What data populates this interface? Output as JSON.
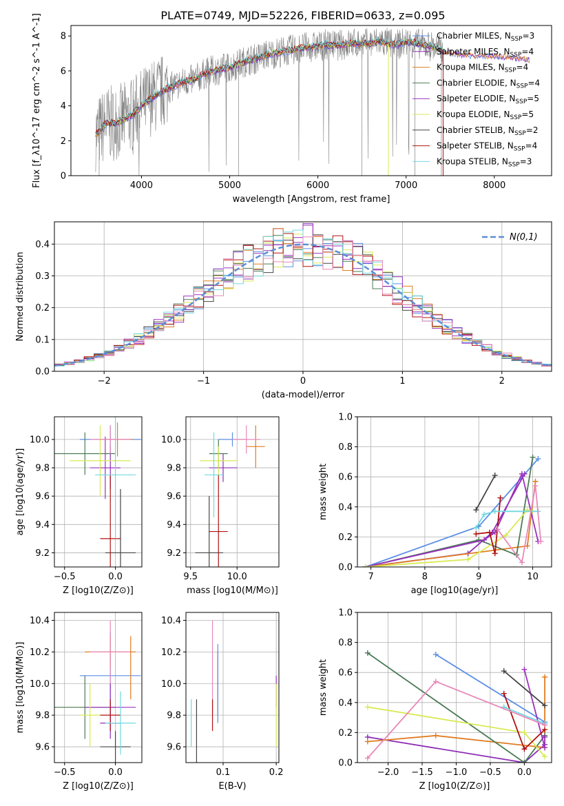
{
  "figure_title": "PLATE=0749, MJD=52226, FIBERID=0633, z=0.095",
  "colors": {
    "Chabrier MILES": "#5b8ee6",
    "Salpeter MILES": "#8c2db5",
    "Kroupa MILES": "#e07b20",
    "Chabrier ELODIE": "#4a7a55",
    "Salpeter ELODIE": "#9b30c0",
    "Kroupa ELODIE": "#d8ea52",
    "Chabrier STELIB": "#444444",
    "Salpeter STELIB": "#b01010",
    "Kroupa STELIB": "#70d8e0",
    "extra_pink": "#e888b8",
    "data": "#808080",
    "normal": "#5b8ed6"
  },
  "chart_data": [
    {
      "id": "spectrum",
      "type": "line",
      "title": "PLATE=0749, MJD=52226, FIBERID=0633, z=0.095",
      "xlabel": "wavelength [Angstrom, rest frame]",
      "ylabel": "Flux [f_λ10^-17 erg cm^-2 s^-1 A^-1]",
      "xlim": [
        3200,
        8650
      ],
      "ylim": [
        0,
        8.6
      ],
      "xticks": [
        4000,
        5000,
        6000,
        7000,
        8000
      ],
      "yticks": [
        0,
        2,
        4,
        6,
        8
      ],
      "legend_position": "top-right",
      "legend": [
        {
          "label": "Chabrier MILES, N",
          "sub": "SSP",
          "suffix": "=3"
        },
        {
          "label": "Salpeter MILES, N",
          "sub": "SSP",
          "suffix": "=4"
        },
        {
          "label": "Kroupa MILES, N",
          "sub": "SSP",
          "suffix": "=4"
        },
        {
          "label": "Chabrier ELODIE, N",
          "sub": "SSP",
          "suffix": "=4"
        },
        {
          "label": "Salpeter ELODIE, N",
          "sub": "SSP",
          "suffix": "=5"
        },
        {
          "label": "Kroupa ELODIE, N",
          "sub": "SSP",
          "suffix": "=5"
        },
        {
          "label": "Chabrier STELIB, N",
          "sub": "SSP",
          "suffix": "=2"
        },
        {
          "label": "Salpeter STELIB, N",
          "sub": "SSP",
          "suffix": "=4"
        },
        {
          "label": "Kroupa STELIB, N",
          "sub": "SSP",
          "suffix": "=3"
        }
      ],
      "model_curve": {
        "x": [
          3500,
          3600,
          3700,
          3800,
          3900,
          4000,
          4100,
          4200,
          4300,
          4400,
          4500,
          4600,
          4700,
          4800,
          4900,
          5000,
          5100,
          5200,
          5300,
          5400,
          5500,
          5600,
          5700,
          5800,
          5900,
          6000,
          6100,
          6200,
          6300,
          6400,
          6500,
          6600,
          6700,
          6800,
          6900,
          7000,
          7100,
          7200,
          7300,
          7400
        ],
        "y": [
          2.4,
          3.0,
          3.0,
          3.2,
          3.5,
          4.0,
          4.4,
          4.7,
          5.0,
          5.2,
          5.4,
          5.5,
          5.8,
          6.0,
          6.1,
          6.2,
          6.4,
          6.6,
          6.7,
          6.9,
          7.0,
          7.1,
          7.2,
          7.3,
          7.35,
          7.4,
          7.5,
          7.45,
          7.5,
          7.6,
          7.55,
          7.6,
          7.7,
          7.6,
          7.5,
          7.65,
          7.6,
          7.5,
          7.4,
          7.2
        ],
        "late_x": [
          7400,
          7600,
          7800,
          8000,
          8200,
          8400
        ],
        "late_y": [
          7.1,
          7.0,
          6.9,
          6.9,
          6.8,
          6.7
        ]
      }
    },
    {
      "id": "residuals",
      "type": "histogram",
      "xlabel": "(data-model)/error",
      "ylabel": "Normed distribution",
      "xlim": [
        -2.5,
        2.5
      ],
      "ylim": [
        0,
        0.47
      ],
      "xticks": [
        -2,
        -1,
        0,
        1,
        2
      ],
      "yticks": [
        0.0,
        0.1,
        0.2,
        0.3,
        0.4
      ],
      "bin_width": 0.1,
      "legend_position": "top-right",
      "legend_label": "N(0,1)",
      "grid": true
    },
    {
      "id": "age_vs_Z",
      "type": "errorbar",
      "xlabel": "Z [log10(Z/Z⊙)]",
      "ylabel": "age  [log10(age/yr)]",
      "xlim": [
        -0.6,
        0.26
      ],
      "ylim": [
        9.1,
        10.16
      ],
      "xticks": [
        -0.5,
        0.0
      ],
      "yticks": [
        9.2,
        9.4,
        9.6,
        9.8,
        10.0
      ],
      "points": [
        {
          "series": "Chabrier MILES",
          "x": -0.05,
          "xerr": 0.3,
          "y": 10.0,
          "yerr": 0.1
        },
        {
          "series": "Salpeter MILES",
          "x": -0.05,
          "xerr": 0.1,
          "y": 9.8,
          "yerr": 0.15
        },
        {
          "series": "Kroupa MILES",
          "x": 0.02,
          "xerr": 0.15,
          "y": 10.0,
          "yerr": 0.12
        },
        {
          "series": "Chabrier ELODIE",
          "x": -0.3,
          "xerr": 0.3,
          "y": 9.9,
          "yerr": 0.15
        },
        {
          "series": "Salpeter ELODIE",
          "x": -0.1,
          "xerr": 0.15,
          "y": 9.8,
          "yerr": 0.22
        },
        {
          "series": "Kroupa ELODIE",
          "x": -0.15,
          "xerr": 0.3,
          "y": 9.85,
          "yerr": 0.25
        },
        {
          "series": "Chabrier STELIB",
          "x": 0.05,
          "xerr": 0.15,
          "y": 9.2,
          "yerr": 0.45
        },
        {
          "series": "Salpeter STELIB",
          "x": -0.05,
          "xerr": 0.1,
          "y": 9.3,
          "yerr": 0.45
        },
        {
          "series": "Kroupa STELIB",
          "x": 0.0,
          "xerr": 0.2,
          "y": 9.75,
          "yerr": 0.45
        },
        {
          "series": "extra_pink",
          "x": -0.05,
          "xerr": 0.2,
          "y": 10.0,
          "yerr": 0.1
        }
      ]
    },
    {
      "id": "age_vs_mass",
      "type": "errorbar",
      "xlabel": "mass [log10(M/M⊙)]",
      "ylabel": "",
      "xlim": [
        9.45,
        10.45
      ],
      "ylim": [
        9.1,
        10.16
      ],
      "xticks": [
        9.5,
        10.0
      ],
      "yticks": [
        9.2,
        9.4,
        9.6,
        9.8,
        10.0
      ],
      "points": [
        {
          "series": "Chabrier MILES",
          "x": 9.95,
          "xerr": 0.15,
          "y": 10.0,
          "yerr": 0.05
        },
        {
          "series": "Salpeter MILES",
          "x": 9.85,
          "xerr": 0.15,
          "y": 9.8,
          "yerr": 0.1
        },
        {
          "series": "Kroupa MILES",
          "x": 10.2,
          "xerr": 0.1,
          "y": 9.95,
          "yerr": 0.15
        },
        {
          "series": "Chabrier ELODIE",
          "x": 9.8,
          "xerr": 0.1,
          "y": 9.9,
          "yerr": 0.1
        },
        {
          "series": "Kroupa ELODIE",
          "x": 9.8,
          "xerr": 0.2,
          "y": 9.85,
          "yerr": 0.1
        },
        {
          "series": "Chabrier STELIB",
          "x": 9.7,
          "xerr": 0.15,
          "y": 9.2,
          "yerr": 0.4
        },
        {
          "series": "Salpeter STELIB",
          "x": 9.8,
          "xerr": 0.1,
          "y": 9.35,
          "yerr": 0.4
        },
        {
          "series": "Kroupa STELIB",
          "x": 9.75,
          "xerr": 0.1,
          "y": 9.75,
          "yerr": 0.3
        },
        {
          "series": "extra_pink",
          "x": 10.1,
          "xerr": 0.15,
          "y": 10.0,
          "yerr": 0.1
        }
      ]
    },
    {
      "id": "massweight_vs_age",
      "type": "line",
      "xlabel": "age  [log10(age/yr)]",
      "ylabel": "mass weight",
      "xlim": [
        6.75,
        10.35
      ],
      "ylim": [
        0,
        1.0
      ],
      "xticks": [
        7,
        8,
        9,
        10
      ],
      "yticks": [
        0.0,
        0.2,
        0.4,
        0.6,
        0.8,
        1.0
      ],
      "grid": true,
      "series": [
        {
          "name": "Chabrier MILES",
          "x": [
            6.9,
            9.0,
            10.1
          ],
          "y": [
            0.0,
            0.27,
            0.72
          ]
        },
        {
          "name": "Salpeter MILES",
          "x": [
            6.9,
            8.8,
            9.25,
            9.85
          ],
          "y": [
            0.0,
            0.09,
            0.23,
            0.62
          ]
        },
        {
          "name": "Kroupa MILES",
          "x": [
            6.9,
            9.9,
            10.05
          ],
          "y": [
            0.0,
            0.14,
            0.57
          ]
        },
        {
          "name": "Chabrier ELODIE",
          "x": [
            6.9,
            9.0,
            9.7,
            10.0
          ],
          "y": [
            0.0,
            0.18,
            0.08,
            0.73
          ]
        },
        {
          "name": "Salpeter ELODIE",
          "x": [
            6.9,
            9.1,
            9.3,
            9.8,
            10.1
          ],
          "y": [
            0.0,
            0.18,
            0.23,
            0.62,
            0.17
          ]
        },
        {
          "name": "Kroupa ELODIE",
          "x": [
            6.9,
            8.8,
            9.5,
            9.9,
            10.0
          ],
          "y": [
            0.0,
            0.05,
            0.21,
            0.38,
            0.37
          ]
        },
        {
          "name": "Chabrier STELIB",
          "x": [
            8.95,
            9.3
          ],
          "y": [
            0.38,
            0.61
          ]
        },
        {
          "name": "Salpeter STELIB",
          "x": [
            8.95,
            9.2,
            9.3,
            9.4
          ],
          "y": [
            0.22,
            0.23,
            0.09,
            0.46
          ]
        },
        {
          "name": "Kroupa STELIB",
          "x": [
            8.95,
            9.1,
            9.3,
            10.1
          ],
          "y": [
            0.26,
            0.35,
            0.37,
            0.37
          ]
        },
        {
          "name": "extra_pink",
          "x": [
            9.35,
            9.8,
            10.05,
            10.15
          ],
          "y": [
            0.25,
            0.03,
            0.54,
            0.17
          ]
        }
      ]
    },
    {
      "id": "mass_vs_Z",
      "type": "errorbar",
      "xlabel": "Z [log10(Z/Z⊙)]",
      "ylabel": "mass [log10(M/M⊙)]",
      "xlim": [
        -0.6,
        0.26
      ],
      "ylim": [
        9.5,
        10.45
      ],
      "xticks": [
        -0.5,
        0.0
      ],
      "yticks": [
        9.6,
        9.8,
        10.0,
        10.2,
        10.4
      ],
      "points": [
        {
          "series": "Chabrier MILES",
          "x": -0.05,
          "xerr": 0.3,
          "y": 10.05,
          "yerr": 0.28
        },
        {
          "series": "Salpeter MILES",
          "x": -0.05,
          "xerr": 0.1,
          "y": 9.75,
          "yerr": 0.1
        },
        {
          "series": "Kroupa MILES",
          "x": -0.05,
          "xerr": 0.25,
          "y": 10.2,
          "yerr": 0.1
        },
        {
          "series": "Chabrier ELODIE",
          "x": -0.3,
          "xerr": 0.3,
          "y": 9.85,
          "yerr": 0.2
        },
        {
          "series": "Salpeter ELODIE",
          "x": -0.05,
          "xerr": 0.25,
          "y": 9.85,
          "yerr": 0.15
        },
        {
          "series": "Kroupa ELODIE",
          "x": -0.25,
          "xerr": 0.1,
          "y": 9.8,
          "yerr": 0.2
        },
        {
          "series": "Chabrier STELIB",
          "x": 0.0,
          "xerr": 0.15,
          "y": 9.6,
          "yerr": 0.1
        },
        {
          "series": "Salpeter STELIB",
          "x": -0.05,
          "xerr": 0.1,
          "y": 9.8,
          "yerr": 0.1
        },
        {
          "series": "Kroupa STELIB",
          "x": 0.05,
          "xerr": 0.15,
          "y": 9.75,
          "yerr": 0.2
        },
        {
          "series": "extra_pink",
          "x": -0.05,
          "xerr": 0.2,
          "y": 10.2,
          "yerr": 0.2
        },
        {
          "series": "Kroupa MILES",
          "x": 0.15,
          "xerr": 0.0,
          "y": 10.1,
          "yerr": 0.2
        }
      ]
    },
    {
      "id": "mass_vs_EBV",
      "type": "errorbar",
      "xlabel": "E(B-V)",
      "ylabel": "",
      "xlim": [
        0.03,
        0.205
      ],
      "ylim": [
        9.5,
        10.45
      ],
      "xticks": [
        0.1,
        0.2
      ],
      "yticks": [
        9.6,
        9.8,
        10.0,
        10.2,
        10.4
      ],
      "points": [
        {
          "series": "Kroupa STELIB",
          "x": 0.04,
          "yerr": 0.15,
          "y": 9.75
        },
        {
          "series": "Chabrier STELIB",
          "x": 0.05,
          "yerr": 0.2,
          "y": 9.7
        },
        {
          "series": "extra_pink",
          "x": 0.08,
          "yerr": 0.3,
          "y": 10.1
        },
        {
          "series": "Salpeter STELIB",
          "x": 0.08,
          "yerr": 0.1,
          "y": 9.8
        },
        {
          "series": "Kroupa MILES",
          "x": 0.09,
          "yerr": 0.2,
          "y": 10.0
        },
        {
          "series": "Chabrier MILES",
          "x": 0.09,
          "yerr": 0.25,
          "y": 10.0
        },
        {
          "series": "Salpeter ELODIE",
          "x": 0.2,
          "yerr": 0.1,
          "y": 9.95
        },
        {
          "series": "Kroupa ELODIE",
          "x": 0.2,
          "yerr": 0.2,
          "y": 9.8
        }
      ]
    },
    {
      "id": "massweight_vs_Z",
      "type": "line",
      "xlabel": "Z [log10(Z/Z⊙)]",
      "ylabel": "mass weight",
      "xlim": [
        -2.45,
        0.4
      ],
      "ylim": [
        0,
        1.0
      ],
      "xticks": [
        -2.0,
        -1.5,
        -1.0,
        -0.5,
        0.0
      ],
      "yticks": [
        0.0,
        0.2,
        0.4,
        0.6,
        0.8,
        1.0
      ],
      "grid": true,
      "series": [
        {
          "name": "Chabrier MILES",
          "x": [
            -1.3,
            0.3
          ],
          "y": [
            0.72,
            0.27
          ]
        },
        {
          "name": "Salpeter MILES",
          "x": [
            -2.3,
            0.0,
            0.3
          ],
          "y": [
            0.17,
            0.0,
            0.12
          ]
        },
        {
          "name": "Kroupa MILES",
          "x": [
            -2.3,
            -1.3,
            0.3,
            0.3
          ],
          "y": [
            0.14,
            0.18,
            0.1,
            0.57
          ]
        },
        {
          "name": "Chabrier ELODIE",
          "x": [
            -2.3,
            0.0,
            0.3
          ],
          "y": [
            0.73,
            0.0,
            0.18
          ]
        },
        {
          "name": "Salpeter ELODIE",
          "x": [
            0.0,
            0.3,
            0.3
          ],
          "y": [
            0.62,
            0.1,
            0.17
          ]
        },
        {
          "name": "Kroupa ELODIE",
          "x": [
            -2.3,
            0.0,
            0.3
          ],
          "y": [
            0.37,
            0.2,
            0.04
          ]
        },
        {
          "name": "Chabrier STELIB",
          "x": [
            -0.3,
            0.3
          ],
          "y": [
            0.61,
            0.38
          ]
        },
        {
          "name": "Salpeter STELIB",
          "x": [
            -0.3,
            0.0,
            0.3
          ],
          "y": [
            0.46,
            0.09,
            0.22
          ]
        },
        {
          "name": "Kroupa STELIB",
          "x": [
            -0.3,
            0.3
          ],
          "y": [
            0.37,
            0.26
          ]
        },
        {
          "name": "extra_pink",
          "x": [
            -2.3,
            -1.3,
            0.3
          ],
          "y": [
            0.03,
            0.54,
            0.25
          ]
        }
      ]
    }
  ]
}
